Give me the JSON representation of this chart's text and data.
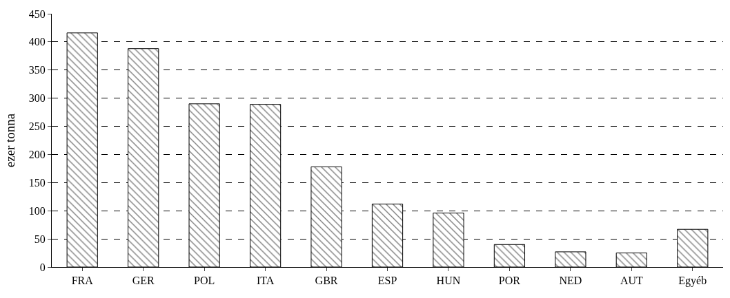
{
  "chart_data": {
    "type": "bar",
    "ylabel": "ezer tonna",
    "categories": [
      "FRA",
      "GER",
      "POL",
      "ITA",
      "GBR",
      "ESP",
      "HUN",
      "POR",
      "NED",
      "AUT",
      "Egyéb"
    ],
    "values": [
      416,
      388,
      290,
      289,
      178,
      112,
      96,
      40,
      27,
      25,
      67
    ],
    "color": "#000000",
    "ylim": [
      0,
      450
    ],
    "yticks": [
      0,
      50,
      100,
      150,
      200,
      250,
      300,
      350,
      400,
      450
    ],
    "grid": "y"
  }
}
